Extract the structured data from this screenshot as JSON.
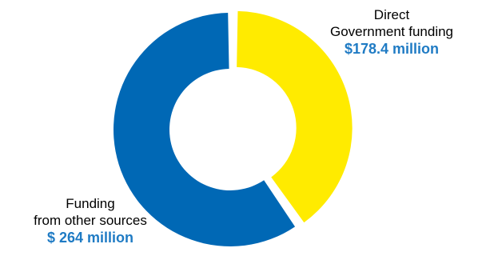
{
  "chart_data": {
    "type": "pie",
    "style": "donut",
    "title": "",
    "slices": [
      {
        "label_line1": "Direct",
        "label_line2": "Government funding",
        "value_label": "$178.4 million",
        "value": 178.4,
        "unit": "million",
        "color": "#FFEB00",
        "exploded": true
      },
      {
        "label_line1": "Funding",
        "label_line2": "from other sources",
        "value_label": "$ 264 million",
        "value": 264,
        "unit": "million",
        "color": "#0068B5",
        "exploded": false
      }
    ],
    "value_label_color": "#1F7BC4",
    "legend": "none"
  }
}
